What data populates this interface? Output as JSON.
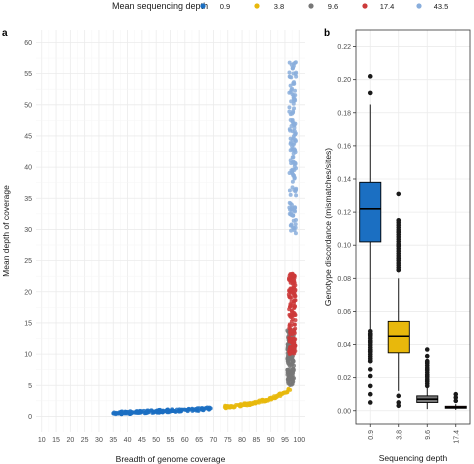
{
  "legend": {
    "title": "Mean sequencing depth",
    "placement": "top",
    "entries": [
      {
        "label": "0.9",
        "color": "#1b6fc2"
      },
      {
        "label": "3.8",
        "color": "#e8b80c"
      },
      {
        "label": "9.6",
        "color": "#777777"
      },
      {
        "label": "17.4",
        "color": "#cc3a3a"
      },
      {
        "label": "43.5",
        "color": "#89aedc"
      }
    ]
  },
  "chart_data": [
    {
      "panel_label": "a",
      "type": "scatter",
      "xlabel": "Breadth of genome coverage",
      "ylabel": "Mean depth of coverage",
      "xlim": [
        8,
        102
      ],
      "ylim": [
        -2.5,
        62
      ],
      "xticks": [
        "10",
        "15",
        "20",
        "25",
        "30",
        "35",
        "40",
        "45",
        "50",
        "55",
        "60",
        "65",
        "70",
        "75",
        "80",
        "85",
        "90",
        "95",
        "100"
      ],
      "yticks": [
        "0",
        "5",
        "10",
        "15",
        "20",
        "25",
        "30",
        "35",
        "40",
        "45",
        "50",
        "55",
        "60"
      ],
      "grid": true,
      "series": [
        {
          "name": "0.9",
          "color": "#1b6fc2",
          "x_range": [
            35,
            70
          ],
          "y_range": [
            0.5,
            1.3
          ],
          "description_points": [
            [
              35,
              0.5
            ],
            [
              40,
              0.6
            ],
            [
              45,
              0.7
            ],
            [
              50,
              0.8
            ],
            [
              55,
              0.9
            ],
            [
              60,
              1.0
            ],
            [
              65,
              1.1
            ],
            [
              70,
              1.3
            ]
          ]
        },
        {
          "name": "3.8",
          "color": "#e8b80c",
          "x_range": [
            74,
            97
          ],
          "y_range": [
            1.5,
            4.5
          ],
          "description_points": [
            [
              74,
              1.5
            ],
            [
              80,
              1.8
            ],
            [
              85,
              2.2
            ],
            [
              88,
              2.6
            ],
            [
              92,
              3.2
            ],
            [
              95,
              3.8
            ],
            [
              97,
              4.5
            ]
          ]
        },
        {
          "name": "9.6",
          "color": "#777777",
          "x_range": [
            94,
            99
          ],
          "y_range": [
            5,
            14
          ],
          "description_points": [
            [
              94,
              5.0
            ],
            [
              96,
              8.0
            ],
            [
              97,
              10.0
            ],
            [
              98,
              12.0
            ],
            [
              99,
              14.0
            ]
          ]
        },
        {
          "name": "17.4",
          "color": "#cc3a3a",
          "x_range": [
            94,
            99.5
          ],
          "y_range": [
            10,
            23
          ],
          "description_points": [
            [
              94,
              10.0
            ],
            [
              96,
              13.0
            ],
            [
              97,
              16.0
            ],
            [
              98,
              19.0
            ],
            [
              99,
              22.0
            ],
            [
              99.5,
              23.0
            ]
          ]
        },
        {
          "name": "43.5",
          "color": "#89aedc",
          "x_range": [
            96,
            99.7
          ],
          "y_range": [
            29,
            57
          ],
          "description_points": [
            [
              96,
              30.0
            ],
            [
              97,
              35.0
            ],
            [
              98,
              42.0
            ],
            [
              99,
              50.0
            ],
            [
              99.5,
              55.0
            ],
            [
              99.7,
              57.0
            ]
          ]
        }
      ]
    },
    {
      "panel_label": "b",
      "type": "box",
      "xlabel": "Sequencing depth",
      "ylabel": "Genotype discordance (mismatches/sites)",
      "ylim": [
        -0.008,
        0.23
      ],
      "yticks": [
        "0.00",
        "0.02",
        "0.04",
        "0.06",
        "0.08",
        "0.10",
        "0.12",
        "0.14",
        "0.16",
        "0.18",
        "0.20",
        "0.22"
      ],
      "categories": [
        "0.9",
        "3.8",
        "9.6",
        "17.4"
      ],
      "boxes": [
        {
          "category": "0.9",
          "color": "#1b6fc2",
          "q1": 0.102,
          "median": 0.122,
          "q3": 0.138,
          "whisker_low": 0.048,
          "whisker_high": 0.185,
          "outliers": [
            0.202,
            0.192,
            0.046,
            0.042,
            0.036,
            0.03,
            0.025,
            0.021,
            0.015,
            0.01,
            0.005
          ]
        },
        {
          "category": "3.8",
          "color": "#e8b80c",
          "q1": 0.035,
          "median": 0.045,
          "q3": 0.054,
          "whisker_low": 0.012,
          "whisker_high": 0.08,
          "outliers": [
            0.131,
            0.115,
            0.108,
            0.1,
            0.092,
            0.085,
            0.009,
            0.005,
            0.003
          ]
        },
        {
          "category": "9.6",
          "color": "#777777",
          "q1": 0.005,
          "median": 0.007,
          "q3": 0.009,
          "whisker_low": 0.001,
          "whisker_high": 0.015,
          "outliers": [
            0.037,
            0.033,
            0.029,
            0.025,
            0.021,
            0.018
          ]
        },
        {
          "category": "17.4",
          "color": "#cc3a3a",
          "q1": 0.0015,
          "median": 0.002,
          "q3": 0.0027,
          "whisker_low": 0.0005,
          "whisker_high": 0.004,
          "outliers": [
            0.01,
            0.008,
            0.006
          ]
        }
      ]
    }
  ]
}
